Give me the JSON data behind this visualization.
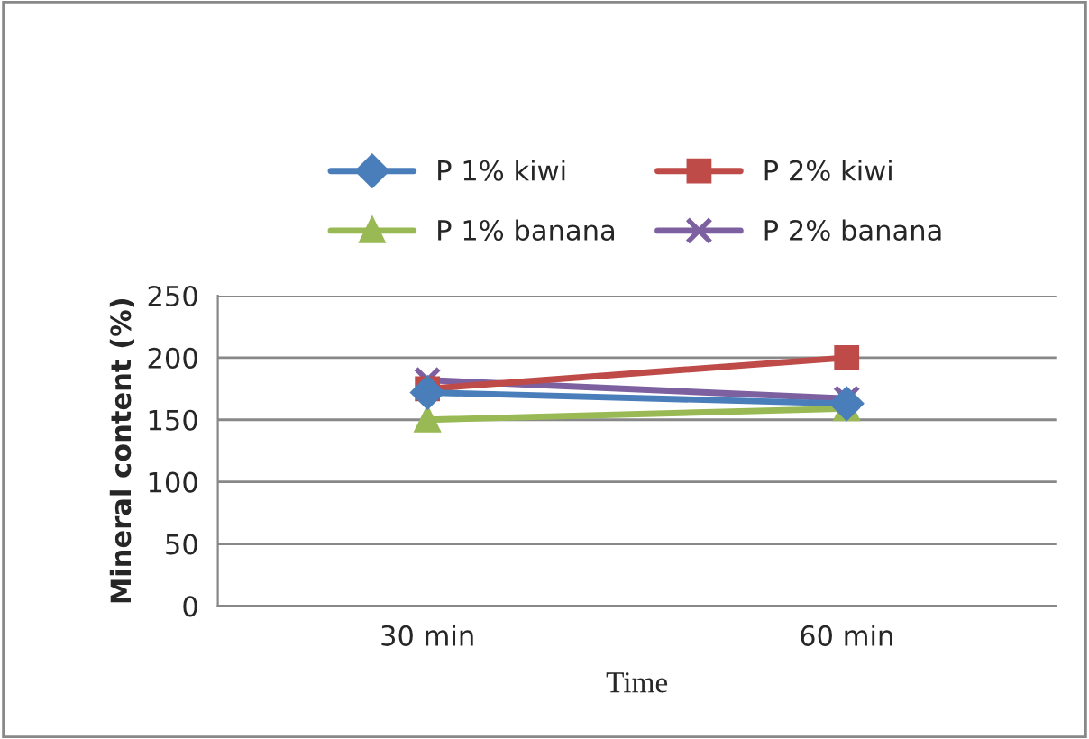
{
  "chart_data": {
    "type": "line",
    "xlabel": "Time",
    "ylabel": "Mineral content (%)",
    "categories": [
      "30 min",
      "60 min"
    ],
    "series": [
      {
        "name": "P 1% kiwi",
        "color": "#4a7ebb",
        "marker": "diamond",
        "values": [
          172,
          163
        ]
      },
      {
        "name": "P 2% kiwi",
        "color": "#be4b48",
        "marker": "square",
        "values": [
          175,
          200
        ]
      },
      {
        "name": "P 1% banana",
        "color": "#98b954",
        "marker": "triangle",
        "values": [
          150,
          159
        ]
      },
      {
        "name": "P 2% banana",
        "color": "#7d60a0",
        "marker": "cross",
        "values": [
          182,
          167
        ]
      }
    ],
    "ylim": [
      0,
      250
    ],
    "yticks": [
      0,
      50,
      100,
      150,
      200,
      250
    ],
    "grid": "y",
    "legend": "top"
  }
}
